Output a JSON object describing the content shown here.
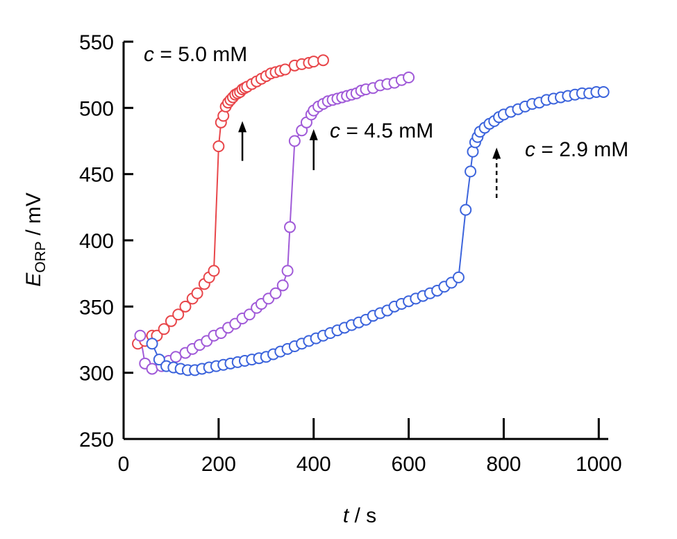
{
  "chart_data": {
    "type": "scatter",
    "xlabel_symbol": "t",
    "xlabel_unit": " / s",
    "ylabel_symbol": "E",
    "ylabel_subscript": "ORP",
    "ylabel_unit": " / mV",
    "xlim": [
      0,
      1020
    ],
    "ylim": [
      250,
      550
    ],
    "xticks": [
      0,
      200,
      400,
      600,
      800,
      1000
    ],
    "yticks": [
      250,
      300,
      350,
      400,
      450,
      500,
      550
    ],
    "xtick_labels": [
      "0",
      "200",
      "400",
      "600",
      "800",
      "1000"
    ],
    "ytick_labels": [
      "250",
      "300",
      "350",
      "400",
      "450",
      "500",
      "550"
    ],
    "grid": false,
    "colors": {
      "c50": "#e8464a",
      "c45": "#a05ad8",
      "c29": "#3c64dc",
      "axis": "#000000"
    },
    "annotations": [
      {
        "id": "c50",
        "prefix": "c",
        "text": " = 5.0 mM",
        "arrow_x": 250,
        "arrow_y0": 460,
        "arrow_y1": 490,
        "dashed": false
      },
      {
        "id": "c45",
        "prefix": "c",
        "text": " = 4.5 mM",
        "arrow_x": 400,
        "arrow_y0": 453,
        "arrow_y1": 484,
        "dashed": false
      },
      {
        "id": "c29",
        "prefix": "c",
        "text": " = 2.9 mM",
        "arrow_x": 785,
        "arrow_y0": 432,
        "arrow_y1": 470,
        "dashed": true
      }
    ],
    "series": [
      {
        "id": "c50",
        "x": [
          30,
          45,
          60,
          70,
          85,
          100,
          115,
          130,
          145,
          155,
          170,
          180,
          190,
          200,
          205,
          210,
          215,
          220,
          225,
          230,
          235,
          240,
          245,
          250,
          255,
          260,
          270,
          280,
          290,
          300,
          310,
          320,
          330,
          340,
          360,
          375,
          390,
          400,
          420
        ],
        "y": [
          322,
          324,
          328,
          328,
          333,
          339,
          344,
          350,
          356,
          360,
          367,
          372,
          377,
          471,
          489,
          494,
          501,
          504,
          506,
          508,
          510,
          511,
          512,
          514,
          515,
          516,
          518,
          520,
          522,
          524,
          526,
          527,
          528,
          529,
          532,
          533,
          534,
          535,
          536
        ]
      },
      {
        "id": "c45",
        "x": [
          35,
          45,
          60,
          80,
          95,
          110,
          130,
          145,
          160,
          175,
          190,
          205,
          220,
          235,
          250,
          265,
          280,
          290,
          305,
          320,
          335,
          345,
          350,
          360,
          375,
          385,
          395,
          400,
          410,
          420,
          430,
          440,
          450,
          460,
          470,
          480,
          490,
          500,
          510,
          525,
          540,
          555,
          570,
          585,
          600
        ],
        "y": [
          328,
          307,
          303,
          305,
          309,
          312,
          315,
          318,
          321,
          324,
          328,
          330,
          334,
          337,
          341,
          344,
          349,
          352,
          356,
          360,
          366,
          377,
          410,
          475,
          483,
          489,
          495,
          498,
          501,
          503,
          505,
          506,
          507,
          508,
          509,
          510,
          511,
          513,
          514,
          515,
          517,
          518,
          519,
          521,
          523
        ]
      },
      {
        "id": "c29",
        "x": [
          60,
          75,
          90,
          105,
          120,
          135,
          150,
          165,
          180,
          195,
          210,
          225,
          240,
          255,
          270,
          285,
          300,
          315,
          330,
          345,
          360,
          375,
          390,
          405,
          420,
          435,
          450,
          465,
          480,
          495,
          510,
          525,
          540,
          555,
          570,
          585,
          600,
          615,
          630,
          645,
          660,
          675,
          690,
          705,
          720,
          730,
          735,
          740,
          745,
          750,
          760,
          770,
          780,
          790,
          800,
          815,
          830,
          845,
          860,
          875,
          890,
          905,
          920,
          935,
          950,
          965,
          980,
          995,
          1010
        ],
        "y": [
          322,
          310,
          305,
          304,
          303,
          302,
          302,
          303,
          304,
          305,
          306,
          307,
          308,
          309,
          310,
          311,
          312,
          314,
          316,
          318,
          320,
          322,
          324,
          326,
          328,
          330,
          332,
          334,
          336,
          338,
          340,
          343,
          345,
          347,
          350,
          352,
          354,
          356,
          358,
          360,
          362,
          365,
          368,
          372,
          423,
          452,
          467,
          474,
          478,
          482,
          485,
          488,
          490,
          493,
          495,
          497,
          499,
          501,
          503,
          504,
          506,
          507,
          508,
          509,
          510,
          511,
          511,
          512,
          512
        ]
      }
    ]
  }
}
